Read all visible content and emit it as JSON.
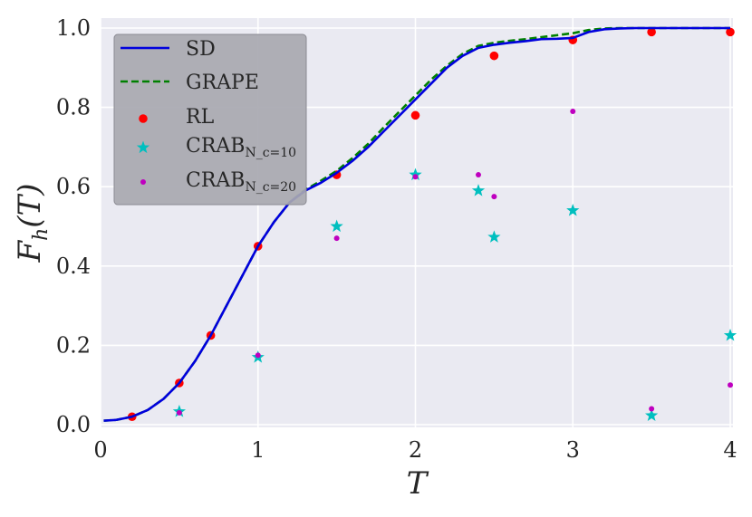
{
  "chart_data": {
    "type": "line",
    "xlabel": "T",
    "ylabel": "F_h(T)",
    "xlim": [
      0,
      4
    ],
    "ylim": [
      0,
      1
    ],
    "x_ticks": [
      "0",
      "1",
      "2",
      "3",
      "4"
    ],
    "y_ticks": [
      "0.0",
      "0.2",
      "0.4",
      "0.6",
      "0.8",
      "1.0"
    ],
    "grid": true,
    "legend_placement": "upper-left",
    "series": [
      {
        "name": "SD",
        "style": "solid-line",
        "color": "#0000dd",
        "x": [
          0.02,
          0.1,
          0.2,
          0.3,
          0.4,
          0.5,
          0.6,
          0.7,
          0.8,
          0.9,
          1.0,
          1.1,
          1.2,
          1.3,
          1.4,
          1.5,
          1.6,
          1.7,
          1.8,
          1.9,
          2.0,
          2.1,
          2.2,
          2.3,
          2.4,
          2.5,
          2.6,
          2.7,
          2.8,
          2.9,
          3.0,
          3.1,
          3.2,
          3.3,
          3.4,
          3.5,
          3.6,
          3.7,
          3.8,
          3.9,
          4.0
        ],
        "y": [
          0.01,
          0.012,
          0.02,
          0.037,
          0.065,
          0.105,
          0.16,
          0.225,
          0.3,
          0.375,
          0.45,
          0.51,
          0.56,
          0.59,
          0.61,
          0.635,
          0.665,
          0.7,
          0.74,
          0.78,
          0.82,
          0.86,
          0.9,
          0.93,
          0.95,
          0.958,
          0.963,
          0.967,
          0.972,
          0.973,
          0.975,
          0.99,
          0.997,
          0.999,
          1.0,
          1.0,
          1.0,
          1.0,
          1.0,
          1.0,
          1.0
        ]
      },
      {
        "name": "GRAPE",
        "style": "dashed-line",
        "color": "#008000",
        "x": [
          0.02,
          0.1,
          0.2,
          0.3,
          0.4,
          0.5,
          0.6,
          0.7,
          0.8,
          0.9,
          1.0,
          1.1,
          1.2,
          1.3,
          1.4,
          1.5,
          1.6,
          1.7,
          1.8,
          1.9,
          2.0,
          2.1,
          2.2,
          2.3,
          2.4,
          2.5,
          2.6,
          2.7,
          2.8,
          2.9,
          3.0,
          3.1,
          3.2,
          3.3,
          3.4,
          3.5,
          3.6,
          3.7,
          3.8,
          3.9,
          4.0
        ],
        "y": [
          0.01,
          0.012,
          0.02,
          0.037,
          0.065,
          0.105,
          0.16,
          0.225,
          0.3,
          0.375,
          0.45,
          0.51,
          0.56,
          0.592,
          0.615,
          0.64,
          0.672,
          0.708,
          0.75,
          0.79,
          0.83,
          0.87,
          0.905,
          0.935,
          0.955,
          0.963,
          0.968,
          0.972,
          0.977,
          0.982,
          0.987,
          0.995,
          0.999,
          1.0,
          1.0,
          1.0,
          1.0,
          1.0,
          1.0,
          1.0,
          1.0
        ]
      },
      {
        "name": "RL",
        "style": "large-dot",
        "color": "#ff0000",
        "x": [
          0.2,
          0.5,
          0.7,
          1.0,
          1.5,
          2.0,
          2.5,
          3.0,
          3.5,
          4.0
        ],
        "y": [
          0.02,
          0.105,
          0.225,
          0.45,
          0.63,
          0.78,
          0.93,
          0.97,
          0.99,
          0.99
        ]
      },
      {
        "name": "CRAB",
        "name_subscript": "N_c=10",
        "style": "star",
        "color": "#00bfbf",
        "x": [
          0.5,
          1.0,
          1.5,
          2.0,
          2.4,
          2.5,
          3.0,
          3.5,
          4.0
        ],
        "y": [
          0.033,
          0.17,
          0.5,
          0.63,
          0.59,
          0.473,
          0.54,
          0.023,
          0.225
        ]
      },
      {
        "name": "CRAB",
        "name_subscript": "N_c=20",
        "style": "small-dot",
        "color": "#bf00bf",
        "x": [
          0.5,
          1.0,
          1.5,
          2.0,
          2.4,
          2.5,
          3.0,
          3.5,
          4.0
        ],
        "y": [
          0.03,
          0.175,
          0.47,
          0.625,
          0.63,
          0.575,
          0.79,
          0.04,
          0.1
        ]
      }
    ]
  }
}
